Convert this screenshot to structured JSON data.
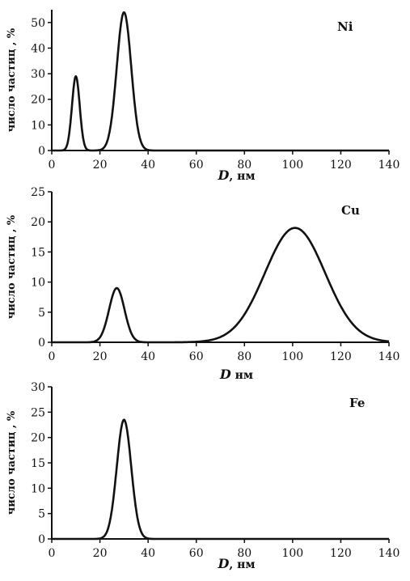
{
  "chart_data": [
    {
      "type": "line",
      "element_label": "Ni",
      "ylabel": "число частиц , %",
      "xlabel_symbol": "D",
      "xlabel_unit": ", нм",
      "xlim": [
        0,
        140
      ],
      "ylim": [
        0,
        55
      ],
      "xticks": [
        0,
        20,
        40,
        60,
        80,
        100,
        120,
        140
      ],
      "yticks": [
        0,
        10,
        20,
        30,
        40,
        50
      ],
      "peaks": [
        {
          "center": 10,
          "sigma": 1.6,
          "height": 29
        },
        {
          "center": 30,
          "sigma": 3.0,
          "height": 54
        }
      ],
      "x": [
        0,
        5,
        8,
        10,
        12,
        15,
        20,
        25,
        28,
        30,
        32,
        35,
        40,
        60,
        100,
        140
      ],
      "y": [
        0,
        0,
        12,
        29,
        12,
        0,
        1,
        13,
        43,
        54,
        43,
        13,
        1,
        0,
        0,
        0
      ]
    },
    {
      "type": "line",
      "element_label": "Cu",
      "ylabel": "число частиц , %",
      "xlabel_symbol": "D",
      "xlabel_unit": "нм",
      "xlim": [
        0,
        140
      ],
      "ylim": [
        0,
        25
      ],
      "xticks": [
        0,
        20,
        40,
        60,
        80,
        100,
        120,
        140
      ],
      "yticks": [
        0,
        5,
        10,
        15,
        20,
        25
      ],
      "peaks": [
        {
          "center": 27,
          "sigma": 3.2,
          "height": 9
        },
        {
          "center": 101,
          "sigma": 12.5,
          "height": 19
        }
      ],
      "x": [
        0,
        20,
        24,
        27,
        30,
        34,
        40,
        60,
        75,
        85,
        95,
        101,
        107,
        115,
        125,
        135,
        140
      ],
      "y": [
        0,
        1,
        5.7,
        9,
        5.7,
        1,
        0,
        0.1,
        2.4,
        8.3,
        16.2,
        19,
        16.9,
        10,
        2.3,
        0.2,
        0
      ]
    },
    {
      "type": "line",
      "element_label": "Fe",
      "ylabel": "число частиц , %",
      "xlabel_symbol": "D",
      "xlabel_unit": ", нм",
      "xlim": [
        0,
        140
      ],
      "ylim": [
        0,
        30
      ],
      "xticks": [
        0,
        20,
        40,
        60,
        80,
        100,
        120,
        140
      ],
      "yticks": [
        0,
        5,
        10,
        15,
        20,
        25,
        30
      ],
      "peaks": [
        {
          "center": 30,
          "sigma": 3.0,
          "height": 23.5
        }
      ],
      "x": [
        0,
        20,
        25,
        28,
        30,
        32,
        35,
        40,
        60,
        140
      ],
      "y": [
        0,
        0,
        6,
        18.5,
        23.5,
        18.5,
        6,
        0.2,
        0,
        0
      ]
    }
  ]
}
